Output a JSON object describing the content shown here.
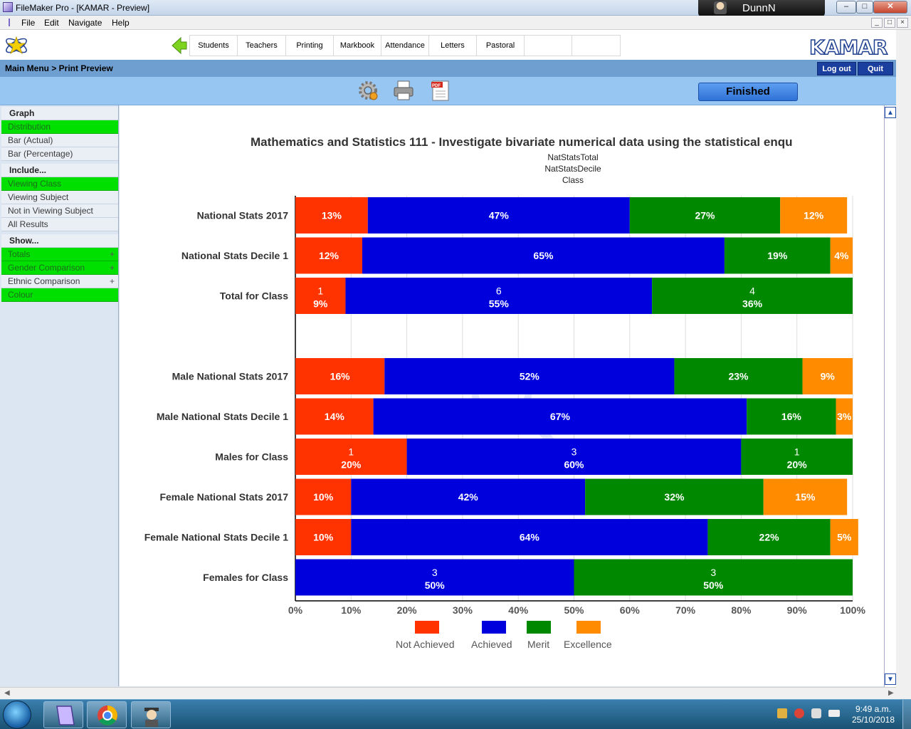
{
  "window": {
    "title": "FileMaker Pro - [KAMAR - Preview]",
    "user": "DunnN"
  },
  "menubar": {
    "items": [
      "File",
      "Edit",
      "Navigate",
      "Help"
    ]
  },
  "nav": {
    "tabs": [
      "Students",
      "Teachers",
      "Printing",
      "Markbook",
      "Attendance",
      "Letters",
      "Pastoral",
      "",
      ""
    ],
    "logo": "KAMAR"
  },
  "breadcrumb": {
    "text": "Main Menu  >  Print Preview",
    "logout": "Log out",
    "quit": "Quit"
  },
  "toolbar": {
    "finished": "Finished",
    "icons": [
      "gear-icon",
      "printer-icon",
      "pdf-icon"
    ]
  },
  "sidebar": {
    "items": [
      {
        "label": "Graph",
        "kind": "head"
      },
      {
        "label": "Distribution",
        "kind": "green"
      },
      {
        "label": "Bar (Actual)",
        "kind": "plain"
      },
      {
        "label": "Bar (Percentage)",
        "kind": "plain"
      },
      {
        "label": "Include...",
        "kind": "head"
      },
      {
        "label": "Viewing Class",
        "kind": "green"
      },
      {
        "label": "Viewing Subject",
        "kind": "plain"
      },
      {
        "label": "Not in Viewing Subject",
        "kind": "plain"
      },
      {
        "label": "All Results",
        "kind": "plain"
      },
      {
        "label": "Show...",
        "kind": "head"
      },
      {
        "label": "Totals",
        "kind": "green",
        "plus": "+"
      },
      {
        "label": "Gender Comparison",
        "kind": "green",
        "plus": "+"
      },
      {
        "label": "Ethnic Comparison",
        "kind": "plain",
        "plus": "+"
      },
      {
        "label": "Colour",
        "kind": "green"
      }
    ]
  },
  "chart_data": {
    "type": "bar",
    "orientation": "horizontal",
    "stacked": true,
    "title": "Mathematics and Statistics 111 - Investigate bivariate numerical data using the statistical enqu",
    "subtitles": [
      "NatStatsTotal",
      "NatStatsDecile",
      "Class"
    ],
    "xlim": [
      0,
      100
    ],
    "xticks": [
      "0%",
      "10%",
      "20%",
      "30%",
      "40%",
      "50%",
      "60%",
      "70%",
      "80%",
      "90%",
      "100%"
    ],
    "grid": true,
    "legend_position": "bottom",
    "series_colors": [
      "#ff3300",
      "#0000dd",
      "#008800",
      "#ff8c00"
    ],
    "legend": [
      "Not Achieved",
      "Achieved",
      "Merit",
      "Excellence"
    ],
    "rows": [
      {
        "label": "National Stats 2017",
        "values": [
          13,
          47,
          27,
          12
        ],
        "labels": [
          "13%",
          "47%",
          "27%",
          "12%"
        ],
        "counts": [
          "",
          "",
          "",
          ""
        ]
      },
      {
        "label": "National Stats Decile 1",
        "values": [
          12,
          65,
          19,
          4
        ],
        "labels": [
          "12%",
          "65%",
          "19%",
          "4%"
        ],
        "counts": [
          "",
          "",
          "",
          ""
        ]
      },
      {
        "label": "Total for Class",
        "values": [
          9,
          55,
          36,
          0
        ],
        "labels": [
          "9%",
          "55%",
          "36%",
          ""
        ],
        "counts": [
          "1",
          "6",
          "4",
          ""
        ]
      },
      {
        "label": "",
        "values": [
          0,
          0,
          0,
          0
        ],
        "labels": [
          "",
          "",
          "",
          ""
        ],
        "counts": [
          "",
          "",
          "",
          ""
        ]
      },
      {
        "label": "Male National Stats 2017",
        "values": [
          16,
          52,
          23,
          9
        ],
        "labels": [
          "16%",
          "52%",
          "23%",
          "9%"
        ],
        "counts": [
          "",
          "",
          "",
          ""
        ]
      },
      {
        "label": "Male National Stats Decile 1",
        "values": [
          14,
          67,
          16,
          3
        ],
        "labels": [
          "14%",
          "67%",
          "16%",
          "3%"
        ],
        "counts": [
          "",
          "",
          "",
          ""
        ]
      },
      {
        "label": "Males for Class",
        "values": [
          20,
          60,
          20,
          0
        ],
        "labels": [
          "20%",
          "60%",
          "20%",
          ""
        ],
        "counts": [
          "1",
          "3",
          "1",
          ""
        ]
      },
      {
        "label": "Female National Stats 2017",
        "values": [
          10,
          42,
          32,
          15
        ],
        "labels": [
          "10%",
          "42%",
          "32%",
          "15%"
        ],
        "counts": [
          "",
          "",
          "",
          ""
        ]
      },
      {
        "label": "Female National Stats Decile 1",
        "values": [
          10,
          64,
          22,
          5
        ],
        "labels": [
          "10%",
          "64%",
          "22%",
          "5%"
        ],
        "counts": [
          "",
          "",
          "",
          ""
        ]
      },
      {
        "label": "Females for Class",
        "values": [
          0,
          50,
          50,
          0
        ],
        "labels": [
          "",
          "50%",
          "50%",
          ""
        ],
        "counts": [
          "",
          "3",
          "3",
          ""
        ]
      }
    ]
  },
  "taskbar": {
    "apps": [
      "filemaker-icon",
      "chrome-icon",
      "kamar-user-icon"
    ],
    "time": "9:49 a.m.",
    "date": "25/10/2018"
  }
}
